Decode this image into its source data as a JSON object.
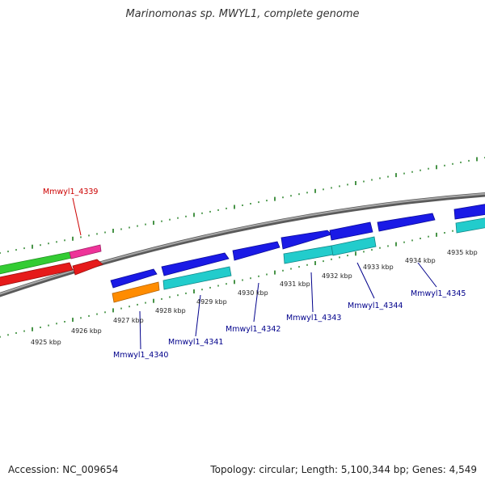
{
  "title": "Marinomonas sp. MWYL1, complete genome",
  "footer": {
    "accession": "Accession: NC_009654",
    "summary": "Topology: circular; Length: 5,100,344 bp; Genes: 4,549"
  },
  "colors": {
    "forward_cds": "#1a1ae6",
    "reverse_cds": "#22cccc",
    "rna": "#ff8c00",
    "red_gene": "#e61a1a",
    "green_gene": "#33cc33",
    "magenta_gene": "#ee3399",
    "backbone": "#808080",
    "ruler": "#1a7a1a",
    "red_label": "#cc0000",
    "blue_label": "#00008b"
  },
  "ruler_ticks": [
    "4925 kbp",
    "4926 kbp",
    "4927 kbp",
    "4928 kbp",
    "4929 kbp",
    "4930 kbp",
    "4931 kbp",
    "4932 kbp",
    "4933 kbp",
    "4934 kbp",
    "4935 kbp"
  ],
  "gene_labels": [
    {
      "text": "Mmwyl1_4339",
      "color": "red"
    },
    {
      "text": "Mmwyl1_4340",
      "color": "blue"
    },
    {
      "text": "Mmwyl1_4341",
      "color": "blue"
    },
    {
      "text": "Mmwyl1_4342",
      "color": "blue"
    },
    {
      "text": "Mmwyl1_4343",
      "color": "blue"
    },
    {
      "text": "Mmwyl1_4344",
      "color": "blue"
    },
    {
      "text": "Mmwyl1_4345",
      "color": "blue"
    }
  ]
}
